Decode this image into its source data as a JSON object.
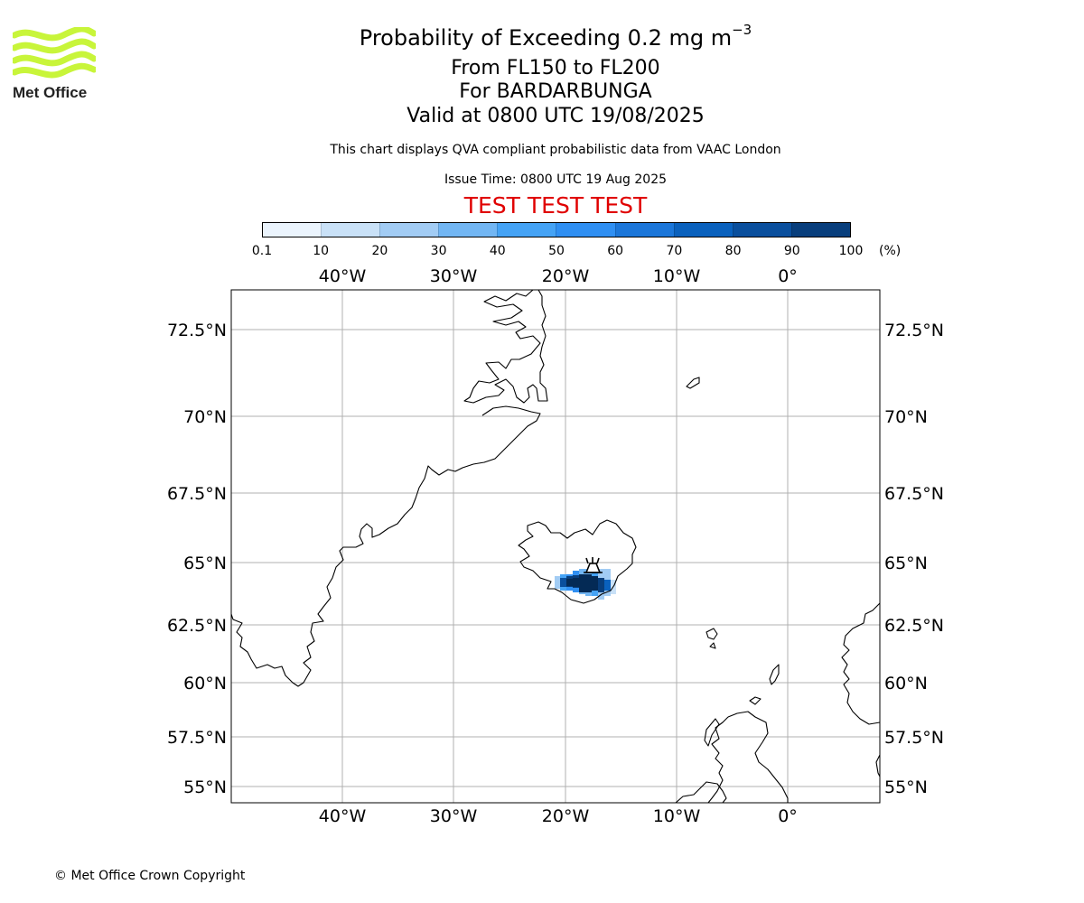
{
  "header": {
    "title_text": "Probability of Exceeding 0.2 mg m",
    "title_superscript": "−3",
    "level_line": "From FL150 to FL200",
    "volcano_line": "For BARDARBUNGA",
    "valid_line": "Valid at 0800 UTC 19/08/2025",
    "chart_note": "This chart displays QVA compliant probabilistic data from VAAC London",
    "issue_time": "Issue Time: 0800 UTC 19 Aug 2025",
    "test_banner": "TEST TEST TEST",
    "test_banner_color": "#e00000"
  },
  "logo": {
    "text": "Met Office",
    "wave_color": "#c8f53a",
    "icon": "met-office-waves-logo"
  },
  "colorbar": {
    "labels": [
      "0.1",
      "10",
      "20",
      "30",
      "40",
      "50",
      "60",
      "70",
      "80",
      "90",
      "100"
    ],
    "unit": "(%)",
    "colors": [
      "#ebf4fd",
      "#c9e1f7",
      "#a2ccf4",
      "#72b6f3",
      "#45a3f5",
      "#2f8ff2",
      "#1b76d9",
      "#0a61bd",
      "#0a4f9d",
      "#083e7c",
      "#042a55"
    ]
  },
  "map": {
    "lon_labels": [
      "40°W",
      "30°W",
      "20°W",
      "10°W",
      "0°"
    ],
    "lat_labels": [
      "72.5°N",
      "70°N",
      "67.5°N",
      "65°N",
      "62.5°N",
      "60°N",
      "57.5°N",
      "55°N"
    ],
    "gridline_color": "#b0b0b0",
    "volcano_marker_icon": "volcano-icon",
    "volcano_name": "BARDARBUNGA"
  },
  "footer": {
    "copyright": "© Met Office Crown Copyright"
  }
}
